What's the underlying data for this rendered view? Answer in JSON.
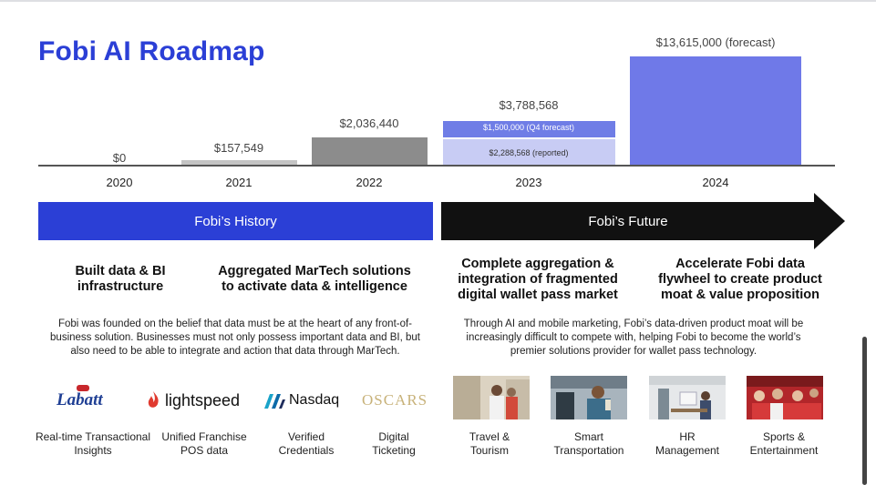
{
  "title": "Fobi AI Roadmap",
  "chart_data": {
    "type": "bar",
    "categories": [
      "2020",
      "2021",
      "2022",
      "2023",
      "2024"
    ],
    "values": [
      0,
      157549,
      2036440,
      3788568,
      13615000
    ],
    "value_labels": [
      "$0",
      "$157,549",
      "$2,036,440",
      "$3,788,568",
      "$13,615,000 (forecast)"
    ],
    "stacked_2023": [
      {
        "name": "reported",
        "value": 2288568,
        "label": "$2,288,568 (reported)"
      },
      {
        "name": "Q4 forecast",
        "value": 1500000,
        "label": "$1,500,000 (Q4 forecast)"
      }
    ],
    "colors": {
      "2020": "#bdbdbd",
      "2021": "#c4c4c4",
      "2022": "#8c8c8c",
      "reported": "#c8ccf4",
      "q4": "#6f7de6",
      "2024": "#6f79e8",
      "axis": "#555555"
    },
    "ylim": [
      0,
      14000000
    ],
    "xlabel": "",
    "ylabel": ""
  },
  "timeline": {
    "history_label": "Fobi’s History",
    "future_label": "Fobi’s Future",
    "history_color": "#2b3fd6",
    "future_color": "#111111"
  },
  "headings": [
    "Built data & BI infrastructure",
    "Aggregated MarTech solutions to activate data & intelligence",
    "Complete aggregation & integration of fragmented digital wallet pass market",
    "Accelerate Fobi data flywheel to create product moat & value proposition"
  ],
  "descriptions": {
    "history": "Fobi was founded on the belief that data must be at the heart of any front-of-business solution. Businesses must not only possess important data and BI, but also need to be able to integrate and action that data through MarTech.",
    "future": "Through AI and mobile marketing, Fobi’s data-driven product moat will be increasingly difficult to compete with, helping Fobi to become the world’s premier solutions provider for wallet pass technology."
  },
  "logos": {
    "labatt": "Labatt",
    "lightspeed": "lightspeed",
    "nasdaq": "Nasdaq",
    "oscars": "OSCARS"
  },
  "captions": [
    "Real-time Transactional Insights",
    "Unified Franchise POS data",
    "Verified Credentials",
    "Digital Ticketing",
    "Travel & Tourism",
    "Smart Transportation",
    "HR Management",
    "Sports & Entertainment"
  ]
}
